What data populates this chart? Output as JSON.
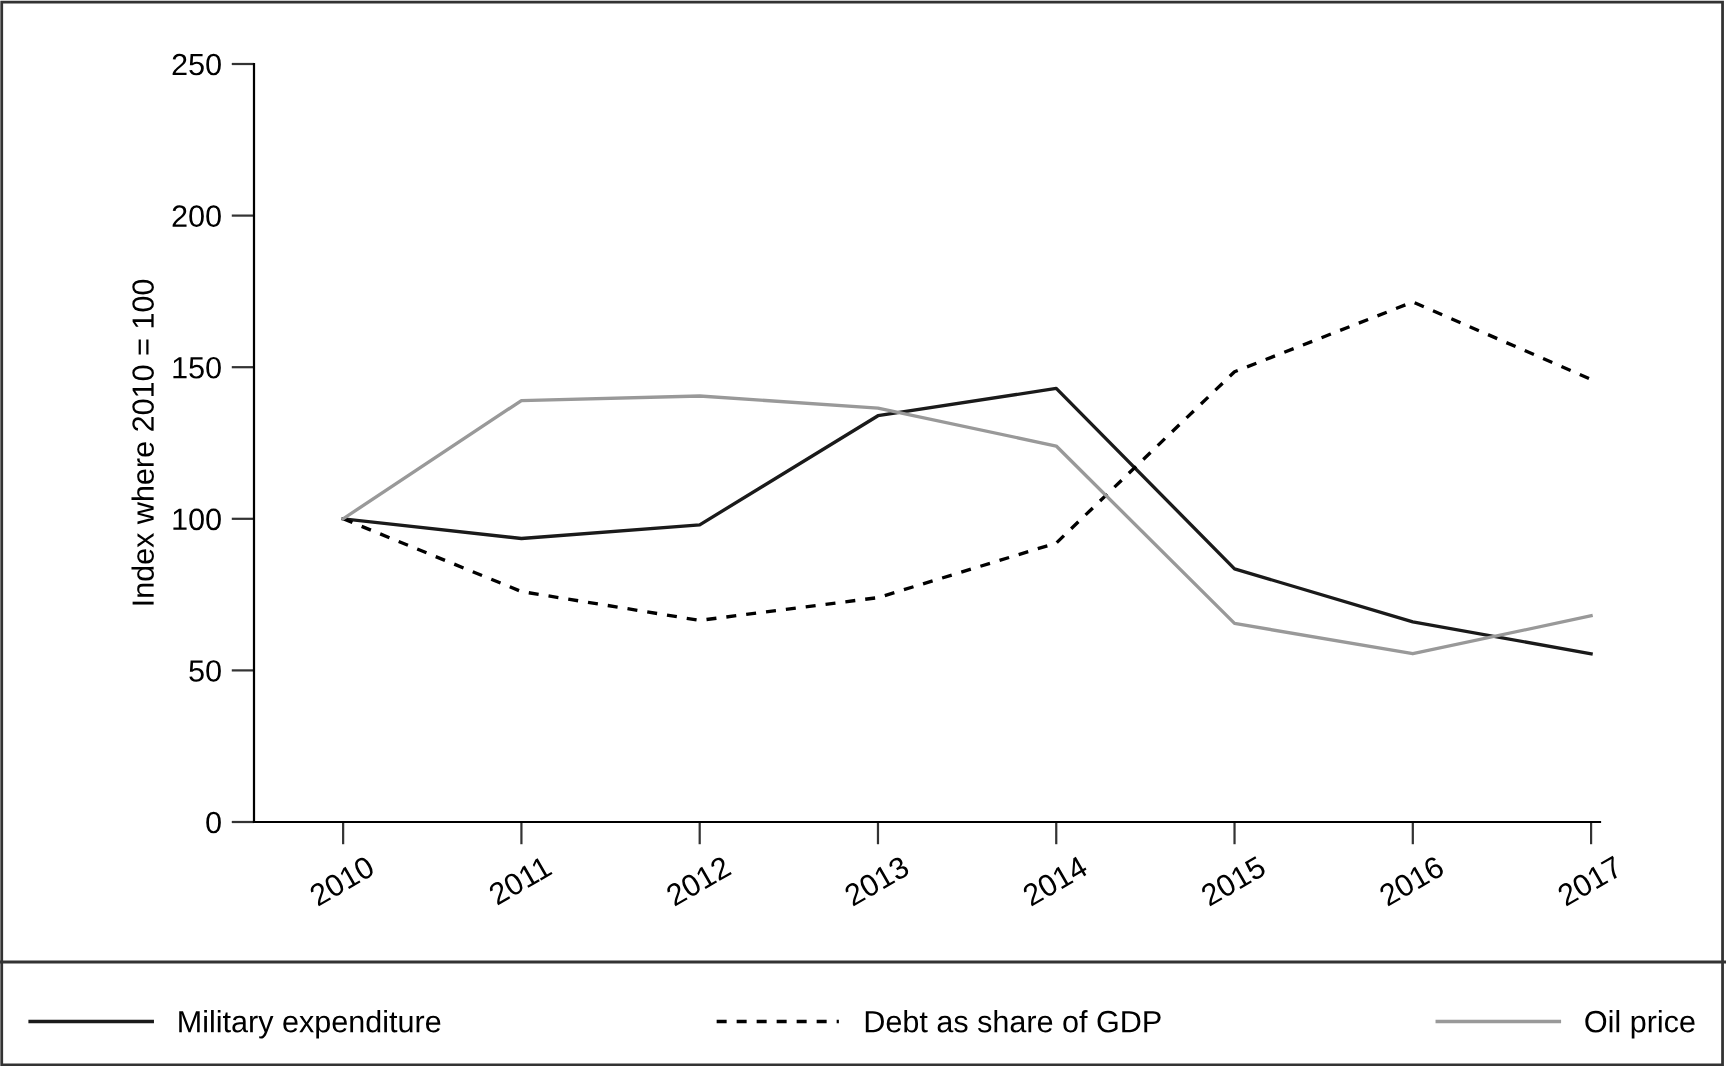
{
  "chart_data": {
    "type": "line",
    "ylabel": "Index where 2010 = 100",
    "categories": [
      "2010",
      "2011",
      "2012",
      "2013",
      "2014",
      "2015",
      "2016",
      "2017"
    ],
    "series": [
      {
        "name": "Military expenditure",
        "color": "#1a1a1a",
        "line_style": "solid",
        "values": [
          100,
          93.5,
          98,
          134,
          143,
          83.5,
          66,
          55.5
        ]
      },
      {
        "name": "Debt as share of GDP",
        "color": "#000000",
        "line_style": "dashed",
        "values": [
          100,
          76,
          66.5,
          74,
          92,
          148.5,
          171.5,
          146
        ]
      },
      {
        "name": "Oil price",
        "color": "#999999",
        "line_style": "solid",
        "values": [
          100,
          139,
          140.5,
          136.5,
          124,
          65.5,
          55.5,
          68
        ]
      }
    ],
    "ylim": [
      0,
      250
    ],
    "yticks": [
      0,
      50,
      100,
      150,
      200,
      250
    ],
    "grid": false,
    "legend": "bottom",
    "marker": "none"
  }
}
